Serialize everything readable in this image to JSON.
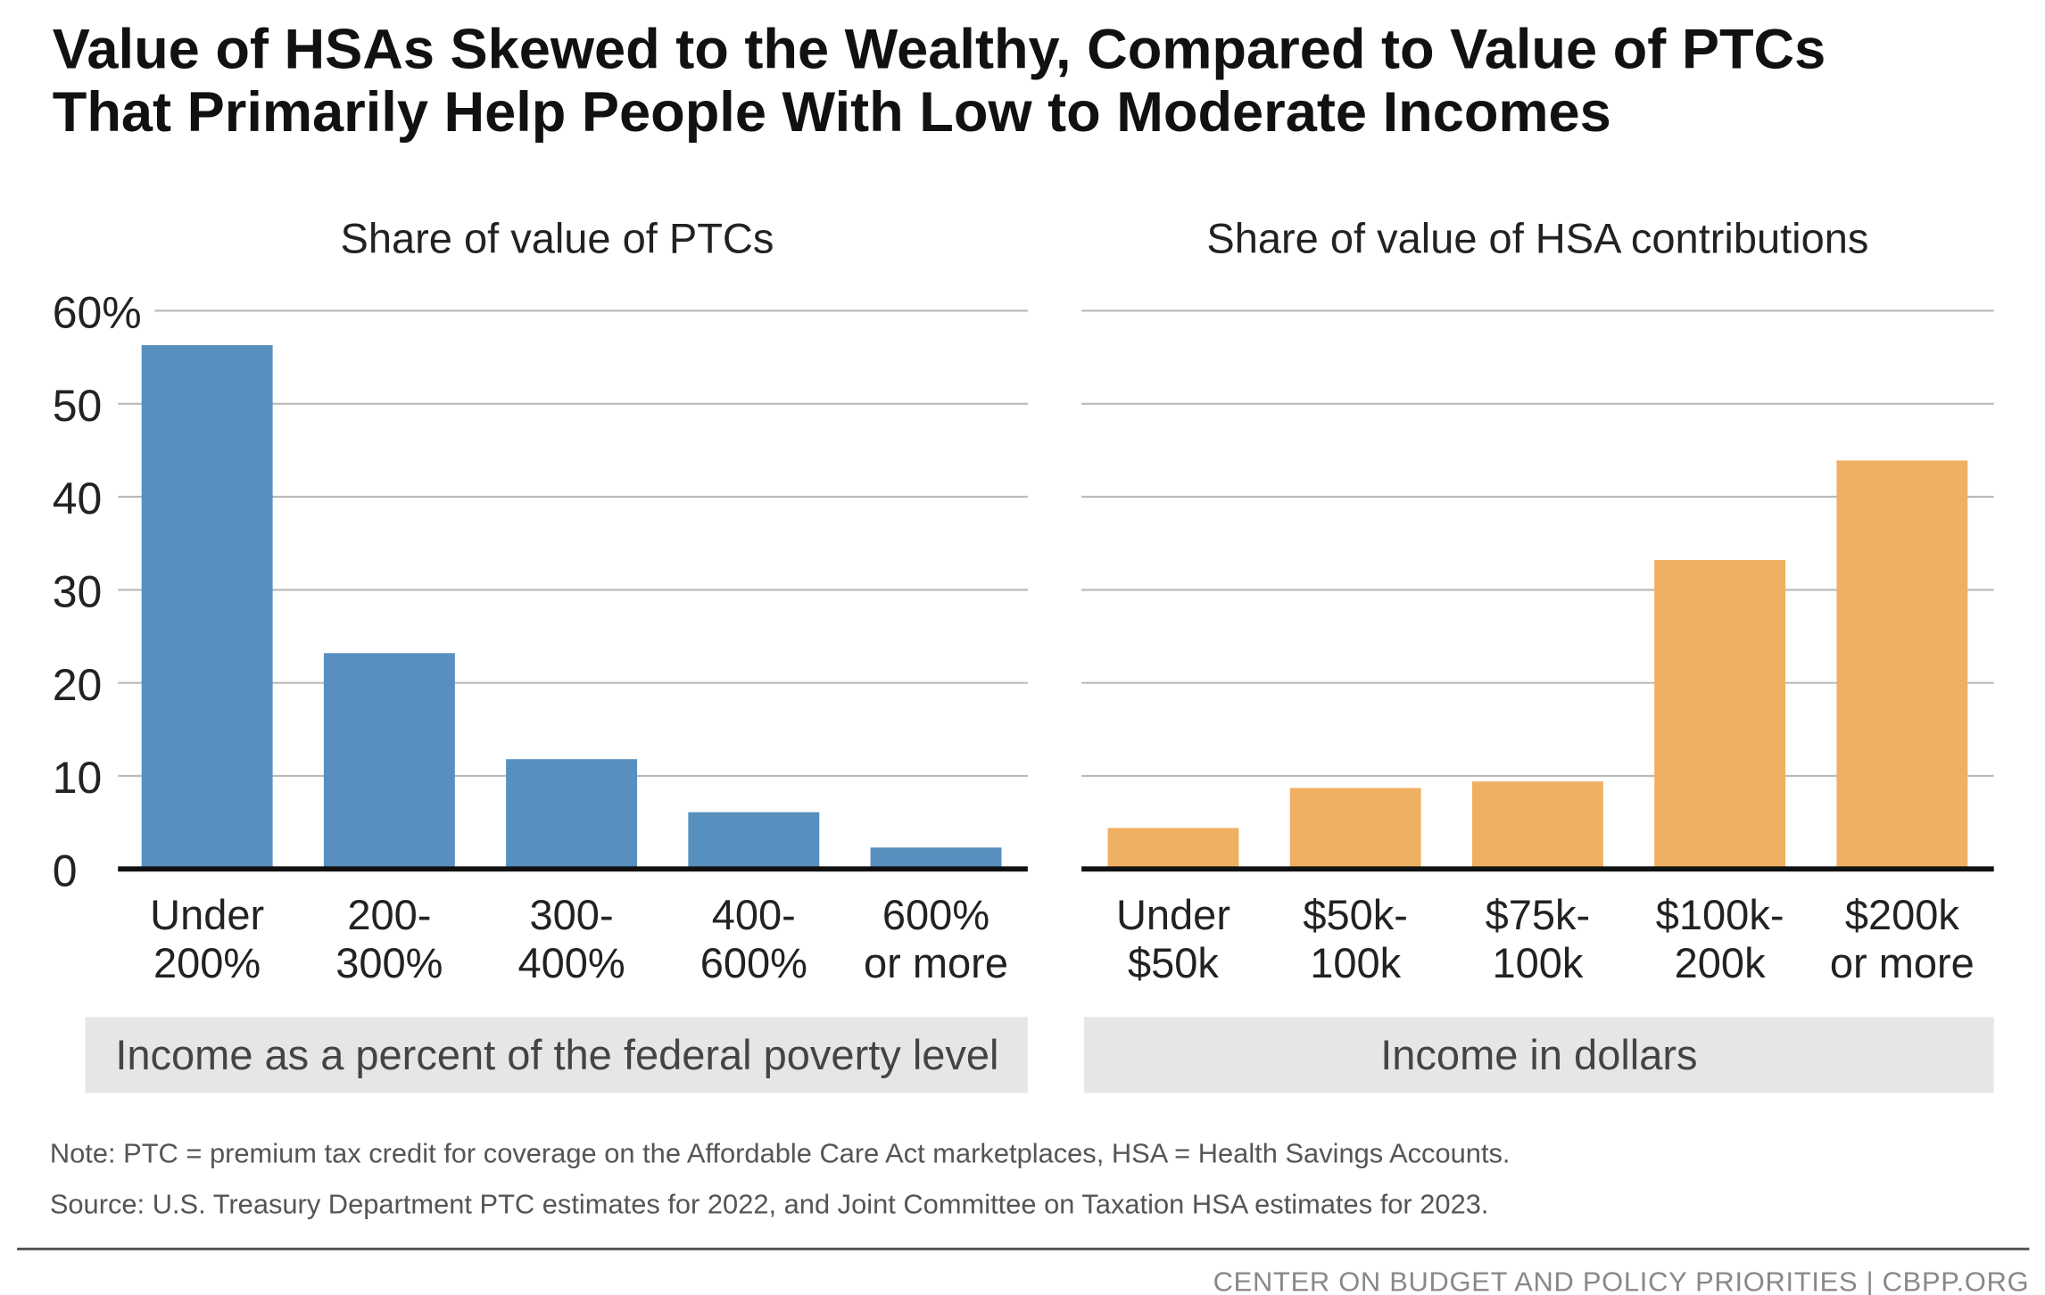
{
  "title_line1": "Value of HSAs Skewed to the Wealthy, Compared to Value of PTCs",
  "title_line2": "That Primarily Help People With Low to Moderate Incomes",
  "chart_data": [
    {
      "type": "bar",
      "title": "Share of value of PTCs",
      "xlabel": "Income as a percent of the federal poverty level",
      "ylabel": "",
      "ylim": [
        0,
        60
      ],
      "yticks": [
        "0",
        "10",
        "20",
        "30",
        "40",
        "50",
        "60%"
      ],
      "categories": [
        [
          "Under",
          "200%"
        ],
        [
          "200-",
          "300%"
        ],
        [
          "300-",
          "400%"
        ],
        [
          "400-",
          "600%"
        ],
        [
          "600%",
          "or more"
        ]
      ],
      "values": [
        56.3,
        23.2,
        11.8,
        6.1,
        2.3
      ],
      "color": "#5790bf",
      "grid": true
    },
    {
      "type": "bar",
      "title": "Share of value of HSA contributions",
      "xlabel": "Income in dollars",
      "ylabel": "",
      "ylim": [
        0,
        60
      ],
      "categories": [
        [
          "Under",
          "$50k"
        ],
        [
          "$50k-",
          "100k"
        ],
        [
          "$75k-",
          "100k"
        ],
        [
          "$100k-",
          "200k"
        ],
        [
          "$200k",
          "or more"
        ]
      ],
      "values": [
        4.4,
        8.7,
        9.4,
        33.2,
        43.9
      ],
      "color": "#f0b063",
      "grid": true
    }
  ],
  "note": "Note: PTC = premium tax credit for coverage on the Affordable Care Act marketplaces, HSA = Health Savings Accounts.",
  "source": "Source: U.S. Treasury Department PTC estimates for 2022, and Joint Committee on Taxation HSA estimates for 2023.",
  "footer": "CENTER ON BUDGET AND POLICY PRIORITIES | CBPP.ORG"
}
